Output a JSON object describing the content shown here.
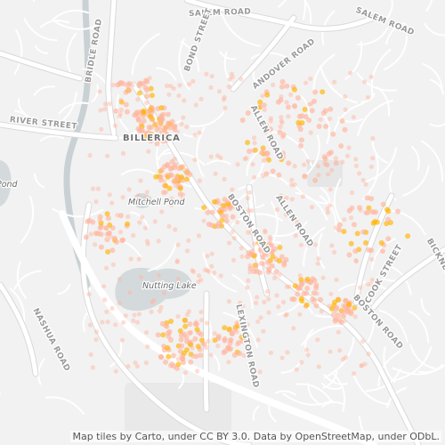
{
  "map": {
    "attribution": "Map tiles by Carto, under CC BY 3.0. Data by OpenStreetMap, under ODbL.",
    "place_label": "BILLERICA",
    "water_labels": [
      "Mitchell Pond",
      "Nutting Lake",
      "Pond"
    ],
    "road_labels": {
      "salem_road_1": "SALEM ROAD",
      "salem_road_2": "SALEM ROAD",
      "andover_road": "ANDOVER ROAD",
      "bond_street": "BOND STREET",
      "bridle_road": "BRIDLE ROAD",
      "river_street": "RIVER STREET",
      "allen_road_1": "ALLEN ROAD",
      "allen_road_2": "ALLEN ROAD",
      "boston_road_1": "BOSTON ROAD",
      "boston_road_2": "BOSTON ROAD",
      "lexington_road": "LEXINGTON ROAD",
      "cook_street": "COOK STREET",
      "bicknell_road": "BICKNELL ROAD",
      "nashua_road": "NASHUA ROAD"
    },
    "colors": {
      "land": "#f2f2f2",
      "road": "#ffffff",
      "road_casing": "#d9d9d9",
      "water": "#d4dadc",
      "river": "#c9d1d4",
      "point_low": "#ffb39c",
      "point_high": "#ffb300"
    },
    "point_layer": "density-points"
  }
}
